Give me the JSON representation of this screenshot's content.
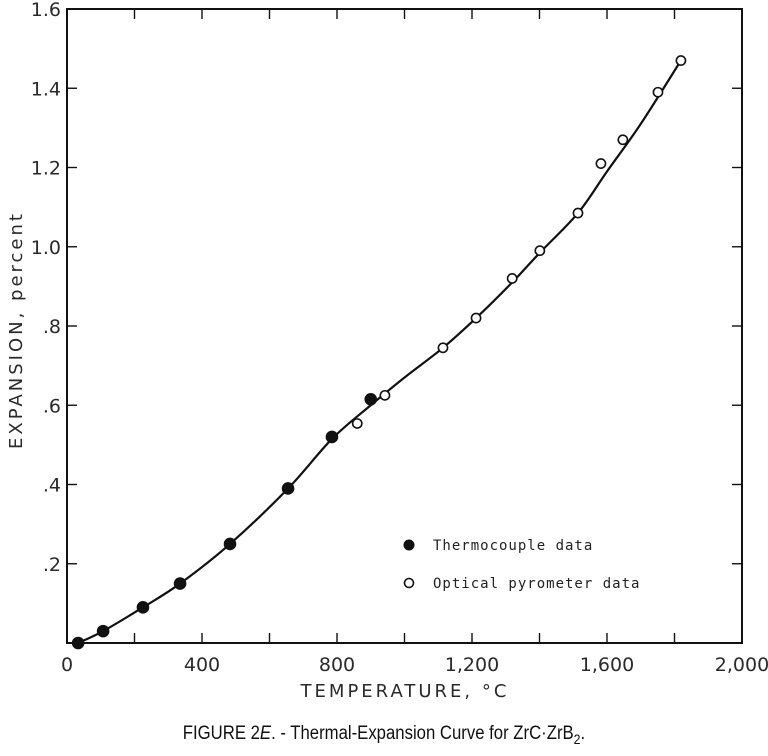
{
  "caption": {
    "prefix": "FIGURE 2",
    "letter": "E",
    "text": ". - Thermal-Expansion Curve for ZrC·ZrB",
    "subscript": "2",
    "suffix": "."
  },
  "chart_data": {
    "type": "scatter",
    "title": "FIGURE 2E. - Thermal-Expansion Curve for ZrC·ZrB2.",
    "xlabel": "TEMPERATURE, °C",
    "ylabel": "EXPANSION, percent",
    "xlim": [
      0,
      2000
    ],
    "ylim": [
      0,
      1.6
    ],
    "x_ticks": [
      0,
      400,
      800,
      1200,
      1600,
      2000
    ],
    "x_tick_labels": [
      "0",
      "400",
      "800",
      "1,200",
      "1,600",
      "2,000"
    ],
    "x_minor_ticks": [
      200,
      600,
      1000,
      1400,
      1800
    ],
    "y_ticks": [
      0.2,
      0.4,
      0.6,
      0.8,
      1.0,
      1.2,
      1.4,
      1.6
    ],
    "y_tick_labels": [
      ".2",
      ".4",
      ".6",
      ".8",
      "1.0",
      "1.2",
      "1.4",
      "1.6"
    ],
    "grid": false,
    "legend_position": "lower right",
    "series": [
      {
        "name": "Thermocouple data",
        "marker": "filled-circle",
        "x": [
          33,
          107,
          225,
          335,
          483,
          655,
          785,
          900
        ],
        "y": [
          0.0,
          0.03,
          0.09,
          0.15,
          0.25,
          0.39,
          0.52,
          0.615
        ]
      },
      {
        "name": "Optical pyrometer data",
        "marker": "open-circle",
        "x": [
          860,
          942,
          1114,
          1212,
          1319,
          1401,
          1514,
          1582,
          1647,
          1751,
          1819
        ],
        "y": [
          0.554,
          0.625,
          0.745,
          0.82,
          0.92,
          0.99,
          1.085,
          1.21,
          1.27,
          1.39,
          1.47
        ]
      }
    ],
    "fit_curve": {
      "style": "solid-smooth",
      "x": [
        33,
        107,
        225,
        335,
        483,
        655,
        785,
        900,
        1000,
        1114,
        1212,
        1319,
        1401,
        1514,
        1600,
        1700,
        1819
      ],
      "y": [
        0.0,
        0.03,
        0.09,
        0.15,
        0.25,
        0.39,
        0.515,
        0.6,
        0.67,
        0.745,
        0.82,
        0.91,
        0.985,
        1.085,
        1.19,
        1.31,
        1.47
      ]
    }
  }
}
